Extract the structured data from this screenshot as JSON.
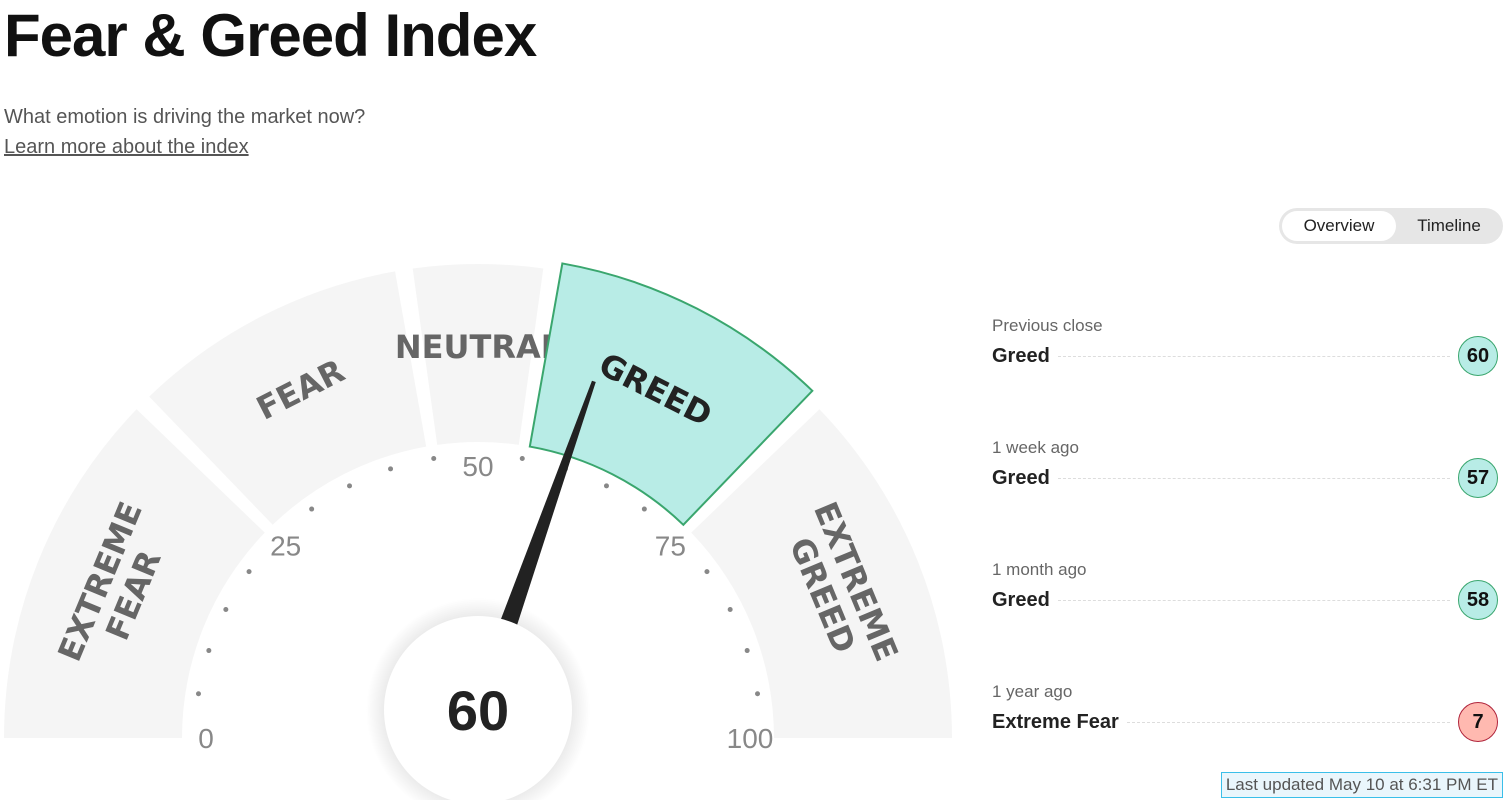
{
  "header": {
    "title": "Fear & Greed Index",
    "subtitle": "What emotion is driving the market now?",
    "learn_link": "Learn more about the index"
  },
  "toggle": {
    "overview": "Overview",
    "timeline": "Timeline",
    "selected": "Overview"
  },
  "gauge": {
    "value": 60,
    "value_text": "60",
    "segments": [
      {
        "label": [
          "EXTREME",
          "FEAR"
        ],
        "from": 0,
        "to": 25
      },
      {
        "label": [
          "FEAR"
        ],
        "from": 25,
        "to": 45
      },
      {
        "label": [
          "NEUTRAL"
        ],
        "from": 45,
        "to": 55
      },
      {
        "label": [
          "GREED"
        ],
        "from": 55,
        "to": 75,
        "active": true
      },
      {
        "label": [
          "EXTREME",
          "GREED"
        ],
        "from": 75,
        "to": 100
      }
    ],
    "ticks": [
      "0",
      "25",
      "50",
      "75",
      "100"
    ],
    "colors": {
      "segment": "#f5f5f5",
      "active": "#b8ece6",
      "active_border": "#3aa66e",
      "needle": "#222"
    }
  },
  "history": [
    {
      "when": "Previous close",
      "label": "Greed",
      "value": "60",
      "bg": "#b8ece6",
      "border": "#3aa66e"
    },
    {
      "when": "1 week ago",
      "label": "Greed",
      "value": "57",
      "bg": "#b8ece6",
      "border": "#3aa66e"
    },
    {
      "when": "1 month ago",
      "label": "Greed",
      "value": "58",
      "bg": "#b8ece6",
      "border": "#3aa66e"
    },
    {
      "when": "1 year ago",
      "label": "Extreme Fear",
      "value": "7",
      "bg": "#ffb9b0",
      "border": "#b0243b"
    }
  ],
  "last_updated": "Last updated May 10 at 6:31 PM ET"
}
